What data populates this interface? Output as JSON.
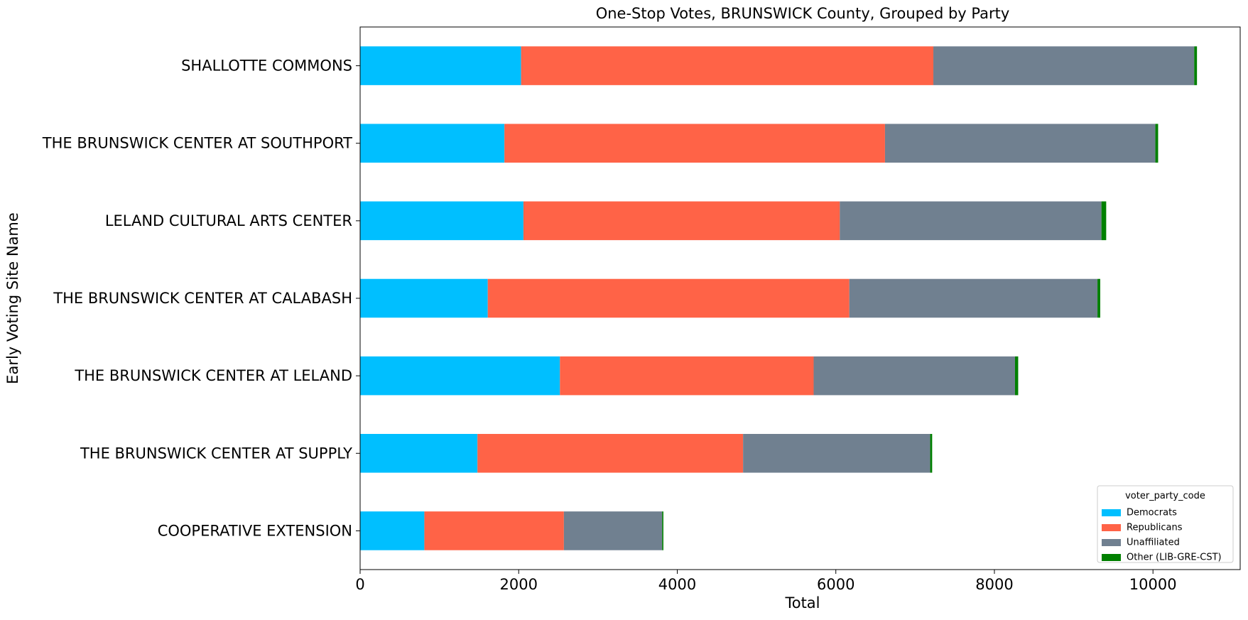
{
  "chart_data": {
    "type": "bar",
    "orientation": "horizontal",
    "stacked": true,
    "title": "One-Stop Votes, BRUNSWICK County, Grouped by Party",
    "xlabel": "Total",
    "ylabel": "Early Voting Site Name",
    "xlim": [
      0,
      11100
    ],
    "xticks": [
      0,
      2000,
      4000,
      6000,
      8000,
      10000
    ],
    "xtick_labels": [
      "0",
      "2000",
      "4000",
      "6000",
      "8000",
      "10000"
    ],
    "grid": false,
    "legend": {
      "title": "voter_party_code",
      "placement": "lower-right"
    },
    "categories": [
      "SHALLOTTE COMMONS",
      "THE BRUNSWICK CENTER AT SOUTHPORT",
      "LELAND CULTURAL ARTS CENTER",
      "THE BRUNSWICK CENTER AT CALABASH",
      "THE BRUNSWICK CENTER AT LELAND",
      "THE BRUNSWICK CENTER AT SUPPLY",
      "COOPERATIVE EXTENSION"
    ],
    "series": [
      {
        "name": "Democrats",
        "color": "#00bfff",
        "values": [
          2030,
          1820,
          2060,
          1610,
          2520,
          1480,
          810
        ]
      },
      {
        "name": "Republicans",
        "color": "#ff6347",
        "values": [
          5200,
          4800,
          3990,
          4560,
          3200,
          3350,
          1760
        ]
      },
      {
        "name": "Unaffiliated",
        "color": "#708090",
        "values": [
          3290,
          3410,
          3300,
          3130,
          2540,
          2360,
          1240
        ]
      },
      {
        "name": "Other (LIB-GRE-CST)",
        "color": "#008000",
        "values": [
          35,
          35,
          60,
          35,
          40,
          25,
          15
        ]
      }
    ]
  }
}
